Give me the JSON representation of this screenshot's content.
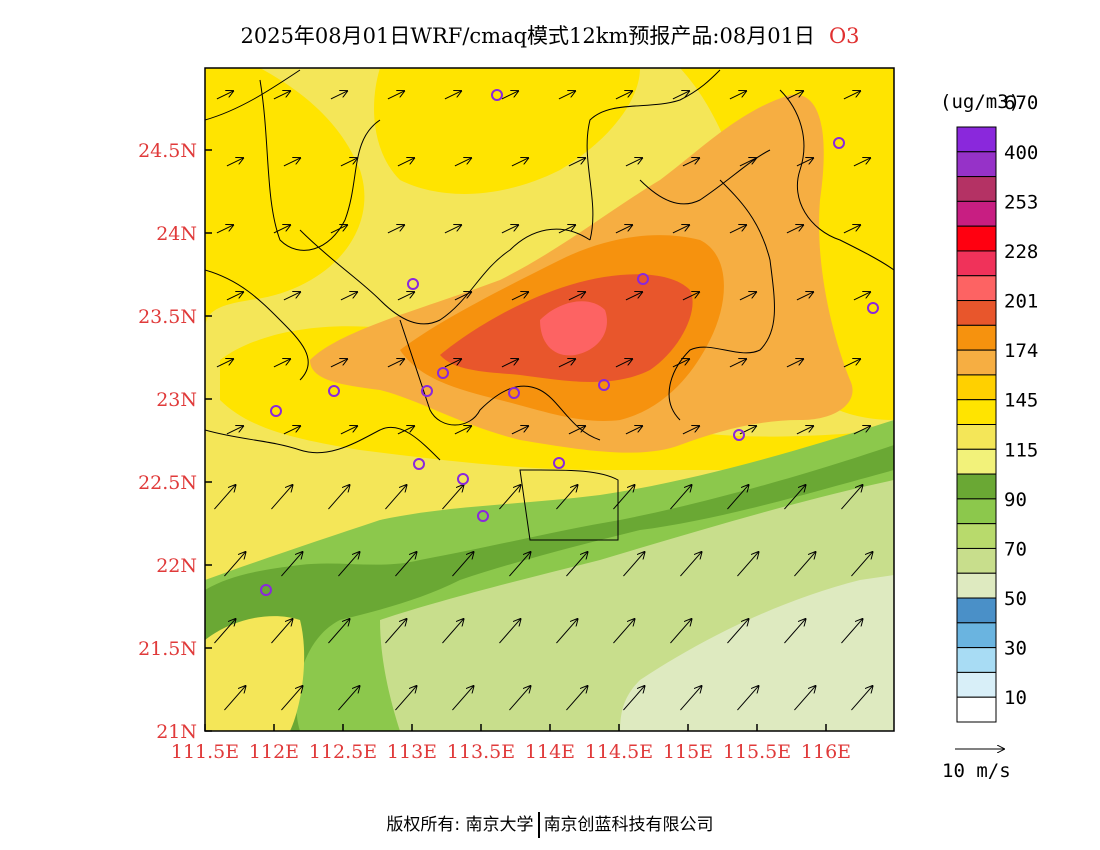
{
  "header": {
    "title": "2025年08月01日WRF/cmaq模式12km预报产品:08月01日",
    "species": "O3"
  },
  "axes": {
    "lon_ticks": [
      "111.5E",
      "112E",
      "112.5E",
      "113E",
      "113.5E",
      "114E",
      "114.5E",
      "115E",
      "115.5E",
      "116E"
    ],
    "lat_ticks": [
      "21N",
      "21.5N",
      "22N",
      "22.5N",
      "23N",
      "23.5N",
      "24N",
      "24.5N"
    ]
  },
  "colorbar": {
    "unit": "(ug/m3)",
    "labels": [
      "10",
      "30",
      "50",
      "70",
      "90",
      "115",
      "145",
      "174",
      "201",
      "228",
      "253",
      "400",
      "670"
    ],
    "colors": [
      "#ffffff",
      "#d8eff8",
      "#a8dcf4",
      "#6ab4e0",
      "#4a90c8",
      "#deeac0",
      "#c8de8c",
      "#b8da6c",
      "#8cc84c",
      "#6aa834",
      "#f2f27a",
      "#f4e658",
      "#ffe400",
      "#ffd000",
      "#f6ae42",
      "#f6920e",
      "#e8562c",
      "#fd6363",
      "#f0325a",
      "#ff0010",
      "#c81e82",
      "#b43264",
      "#9632c8",
      "#8a28dc"
    ]
  },
  "vector_legend": {
    "label": "10 m/s"
  },
  "footer": {
    "copyright": "版权所有: 南京大学",
    "company": "南京创蓝科技有限公司"
  }
}
